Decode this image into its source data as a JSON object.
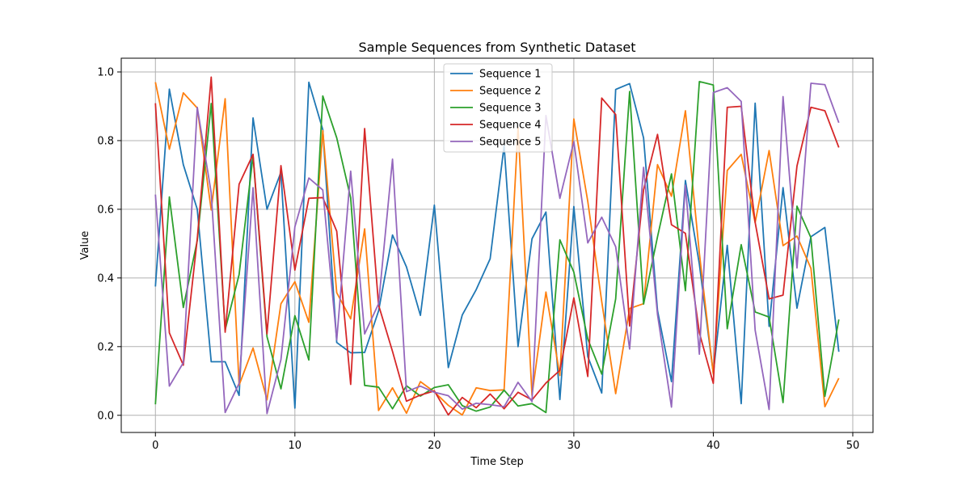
{
  "chart_data": {
    "type": "line",
    "title": "Sample Sequences from Synthetic Dataset",
    "xlabel": "Time Step",
    "ylabel": "Value",
    "xlim": [
      -2.45,
      51.45
    ],
    "ylim": [
      -0.05,
      1.04
    ],
    "xticks": [
      0,
      10,
      20,
      30,
      40,
      50
    ],
    "yticks": [
      0.0,
      0.2,
      0.4,
      0.6,
      0.8,
      1.0
    ],
    "xtick_labels": [
      "0",
      "10",
      "20",
      "30",
      "40",
      "50"
    ],
    "ytick_labels": [
      "0.0",
      "0.2",
      "0.4",
      "0.6",
      "0.8",
      "1.0"
    ],
    "grid": true,
    "legend_position": "top-center",
    "x": [
      0,
      1,
      2,
      3,
      4,
      5,
      6,
      7,
      8,
      9,
      10,
      11,
      12,
      13,
      14,
      15,
      16,
      17,
      18,
      19,
      20,
      21,
      22,
      23,
      24,
      25,
      26,
      27,
      28,
      29,
      30,
      31,
      32,
      33,
      34,
      35,
      36,
      37,
      38,
      39,
      40,
      41,
      42,
      43,
      44,
      45,
      46,
      47,
      48,
      49
    ],
    "series": [
      {
        "name": "Sequence 1",
        "color": "#1f77b4",
        "values": [
          0.375,
          0.95,
          0.73,
          0.6,
          0.156,
          0.156,
          0.058,
          0.866,
          0.6,
          0.708,
          0.021,
          0.97,
          0.832,
          0.212,
          0.182,
          0.183,
          0.304,
          0.525,
          0.432,
          0.291,
          0.612,
          0.139,
          0.292,
          0.366,
          0.456,
          0.785,
          0.2,
          0.514,
          0.592,
          0.046,
          0.608,
          0.171,
          0.065,
          0.949,
          0.966,
          0.808,
          0.305,
          0.098,
          0.684,
          0.44,
          0.122,
          0.495,
          0.034,
          0.909,
          0.259,
          0.663,
          0.312,
          0.52,
          0.547,
          0.185
        ]
      },
      {
        "name": "Sequence 2",
        "color": "#ff7f0e",
        "values": [
          0.97,
          0.775,
          0.939,
          0.895,
          0.598,
          0.922,
          0.088,
          0.196,
          0.045,
          0.325,
          0.389,
          0.271,
          0.829,
          0.357,
          0.281,
          0.543,
          0.014,
          0.08,
          0.006,
          0.098,
          0.068,
          0.029,
          0.001,
          0.08,
          0.072,
          0.074,
          0.838,
          0.058,
          0.359,
          0.116,
          0.863,
          0.623,
          0.331,
          0.063,
          0.311,
          0.325,
          0.73,
          0.638,
          0.887,
          0.472,
          0.12,
          0.713,
          0.76,
          0.561,
          0.771,
          0.494,
          0.522,
          0.428,
          0.025,
          0.108
        ]
      },
      {
        "name": "Sequence 3",
        "color": "#2ca02c",
        "values": [
          0.032,
          0.636,
          0.314,
          0.509,
          0.908,
          0.249,
          0.41,
          0.756,
          0.229,
          0.077,
          0.29,
          0.161,
          0.93,
          0.808,
          0.633,
          0.087,
          0.082,
          0.019,
          0.086,
          0.056,
          0.081,
          0.089,
          0.028,
          0.012,
          0.024,
          0.073,
          0.027,
          0.034,
          0.008,
          0.511,
          0.417,
          0.222,
          0.12,
          0.339,
          0.943,
          0.324,
          0.52,
          0.703,
          0.363,
          0.972,
          0.962,
          0.252,
          0.497,
          0.301,
          0.286,
          0.037,
          0.609,
          0.517,
          0.055,
          0.279
        ]
      },
      {
        "name": "Sequence 4",
        "color": "#d62728",
        "values": [
          0.909,
          0.24,
          0.146,
          0.514,
          0.985,
          0.242,
          0.673,
          0.76,
          0.237,
          0.727,
          0.423,
          0.632,
          0.634,
          0.536,
          0.09,
          0.835,
          0.321,
          0.186,
          0.041,
          0.059,
          0.071,
          0.001,
          0.052,
          0.022,
          0.062,
          0.019,
          0.067,
          0.045,
          0.094,
          0.131,
          0.342,
          0.113,
          0.924,
          0.876,
          0.26,
          0.657,
          0.818,
          0.555,
          0.53,
          0.24,
          0.093,
          0.897,
          0.9,
          0.562,
          0.339,
          0.35,
          0.726,
          0.897,
          0.887,
          0.78
        ]
      },
      {
        "name": "Sequence 5",
        "color": "#9467bd",
        "values": [
          0.643,
          0.085,
          0.153,
          0.897,
          0.648,
          0.008,
          0.093,
          0.663,
          0.005,
          0.162,
          0.549,
          0.691,
          0.656,
          0.22,
          0.711,
          0.237,
          0.325,
          0.746,
          0.069,
          0.085,
          0.067,
          0.057,
          0.018,
          0.035,
          0.031,
          0.025,
          0.096,
          0.04,
          0.873,
          0.632,
          0.797,
          0.502,
          0.577,
          0.491,
          0.193,
          0.722,
          0.293,
          0.024,
          0.67,
          0.178,
          0.94,
          0.954,
          0.914,
          0.248,
          0.017,
          0.928,
          0.429,
          0.967,
          0.963,
          0.852
        ]
      }
    ]
  }
}
